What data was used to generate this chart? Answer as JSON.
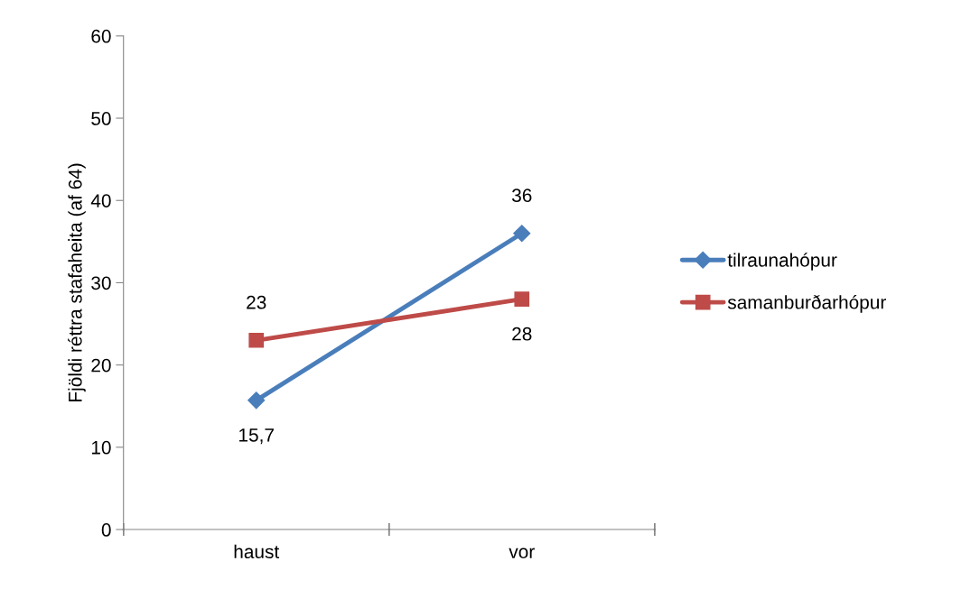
{
  "chart_data": {
    "type": "line",
    "ylabel": "Fjöldi réttra stafaheita (af 64)",
    "categories": [
      "haust",
      "vor"
    ],
    "series": [
      {
        "name": "tilraunahópur",
        "color": "#4a7ebb",
        "marker": "diamond",
        "values": [
          15.7,
          36
        ],
        "value_labels": [
          "15,7",
          "36"
        ]
      },
      {
        "name": "samanburðarhópur",
        "color": "#be4b48",
        "marker": "square",
        "values": [
          23,
          28
        ],
        "value_labels": [
          "23",
          "28"
        ]
      }
    ],
    "ylim": [
      0,
      60
    ],
    "yticks": [
      0,
      10,
      20,
      30,
      40,
      50,
      60
    ],
    "grid": false,
    "legend": "right"
  }
}
